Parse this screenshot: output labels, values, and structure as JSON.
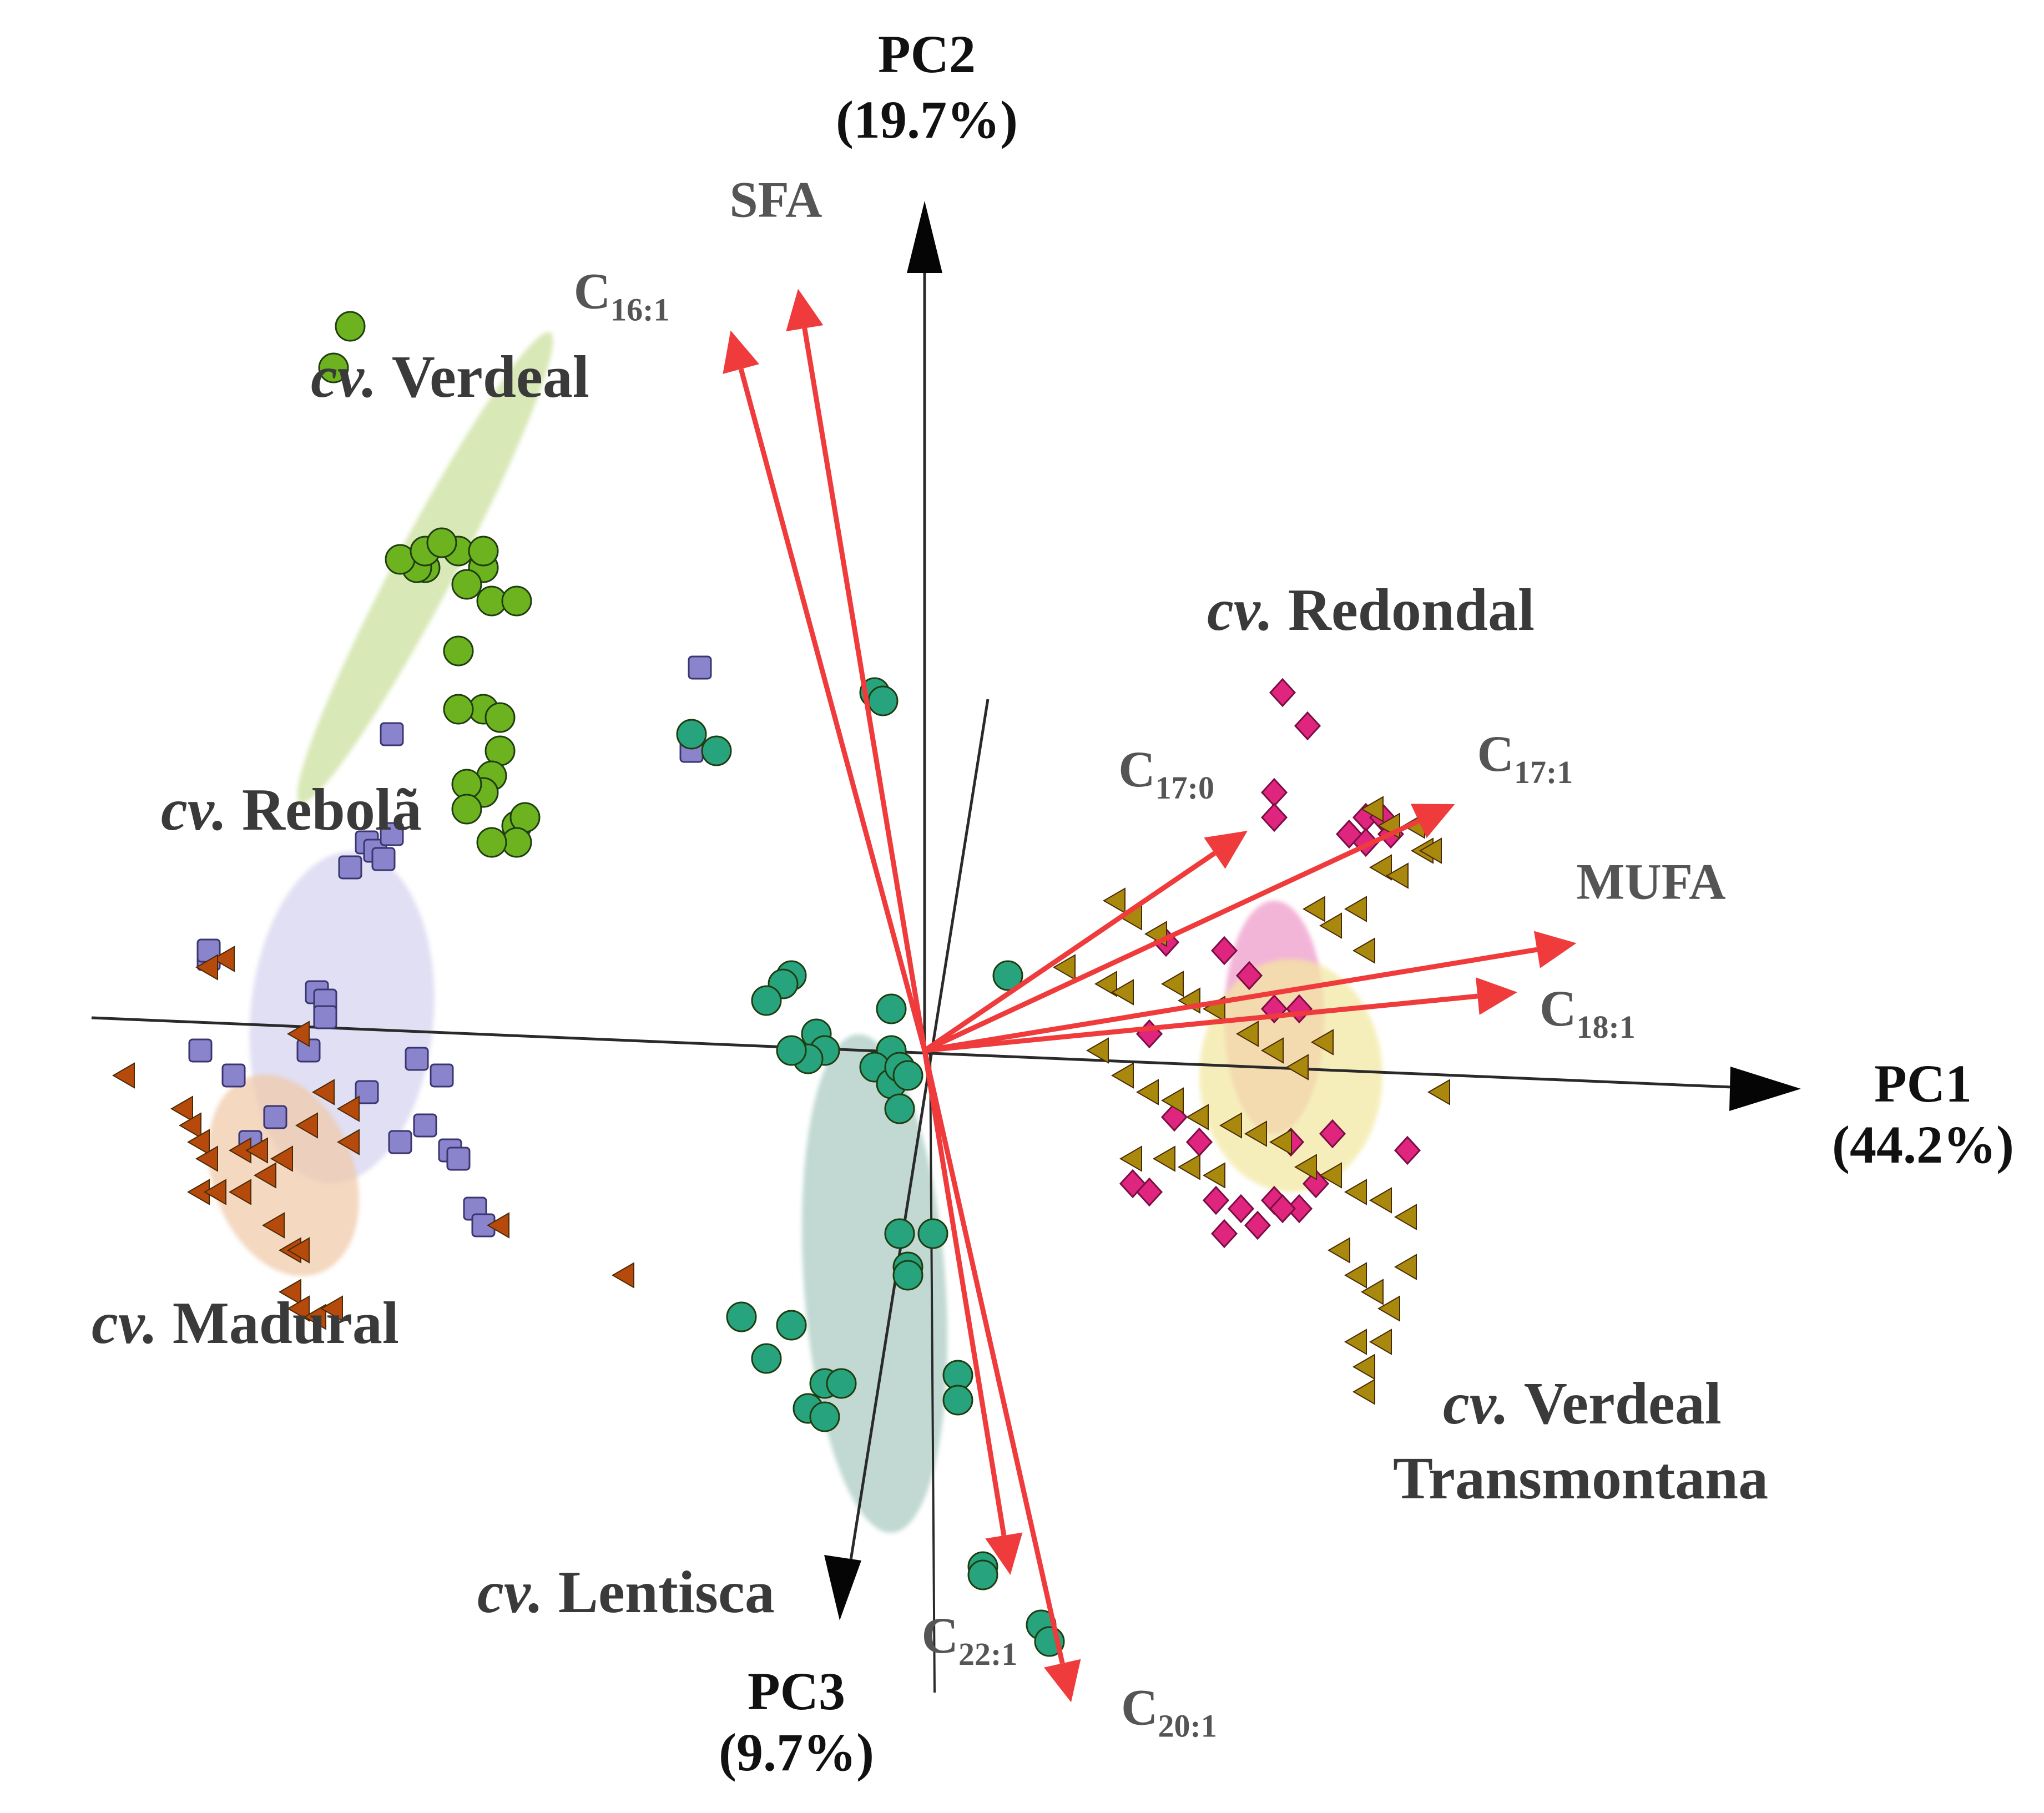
{
  "chart_data": {
    "type": "scatter",
    "subtype": "PCA biplot (3D)",
    "title": "",
    "axes": [
      {
        "id": "pc1",
        "name": "PC1",
        "variance": "(44.2%)",
        "lim": [
          -1.0,
          1.0
        ]
      },
      {
        "id": "pc2",
        "name": "PC2",
        "variance": "(19.7%)",
        "lim": [
          -1.0,
          1.0
        ]
      },
      {
        "id": "pc3",
        "name": "PC3",
        "variance": "(9.7%)",
        "lim": [
          -1.0,
          1.0
        ]
      }
    ],
    "loadings": [
      {
        "id": "sfa",
        "base": "SFA",
        "sub": "",
        "pc1": -0.152,
        "pc2": 0.915
      },
      {
        "id": "c161",
        "base": "C",
        "sub": "16:1",
        "pc1": -0.233,
        "pc2": 0.865
      },
      {
        "id": "c170",
        "base": "C",
        "sub": "17:0",
        "pc1": 0.388,
        "pc2": 0.264
      },
      {
        "id": "c171",
        "base": "C",
        "sub": "17:1",
        "pc1": 0.637,
        "pc2": 0.296
      },
      {
        "id": "mufa",
        "base": "MUFA",
        "sub": "",
        "pc1": 0.783,
        "pc2": 0.129
      },
      {
        "id": "c181",
        "base": "C",
        "sub": "18:1",
        "pc1": 0.712,
        "pc2": 0.07
      },
      {
        "id": "c221",
        "base": "C",
        "sub": "22:1",
        "pc1": 0.103,
        "pc2": -0.63
      },
      {
        "id": "c201",
        "base": "C",
        "sub": "20:1",
        "pc1": 0.176,
        "pc2": -0.783
      }
    ],
    "groups": [
      {
        "id": "verdeal",
        "cv": "cv.",
        "name": "Verdeal",
        "name2": "",
        "marker": "sphere",
        "color": "#6cb31f",
        "ellipse": {
          "cx": -0.6,
          "cy": 0.58,
          "rx": 0.32,
          "ry": 0.036,
          "angle": -62,
          "color": "#c9df9a"
        },
        "points": [
          [
            -0.69,
            0.87
          ],
          [
            -0.71,
            0.82
          ],
          [
            -0.56,
            0.6
          ],
          [
            -0.53,
            0.58
          ],
          [
            -0.53,
            0.6
          ],
          [
            -0.55,
            0.56
          ],
          [
            -0.52,
            0.54
          ],
          [
            -0.49,
            0.54
          ],
          [
            -0.56,
            0.48
          ],
          [
            -0.53,
            0.41
          ],
          [
            -0.56,
            0.41
          ],
          [
            -0.51,
            0.4
          ],
          [
            -0.6,
            0.58
          ],
          [
            -0.51,
            0.36
          ],
          [
            -0.52,
            0.33
          ],
          [
            -0.53,
            0.31
          ],
          [
            -0.55,
            0.32
          ],
          [
            -0.49,
            0.27
          ],
          [
            -0.48,
            0.28
          ],
          [
            -0.49,
            0.25
          ],
          [
            -0.52,
            0.25
          ],
          [
            -0.61,
            0.58
          ],
          [
            -0.63,
            0.59
          ],
          [
            -0.6,
            0.6
          ],
          [
            -0.58,
            0.61
          ],
          [
            -0.55,
            0.29
          ]
        ]
      },
      {
        "id": "rebola",
        "cv": "cv.",
        "name": "Rebolã",
        "name2": "",
        "marker": "cube",
        "color": "#8a84cc",
        "ellipse": {
          "cx": -0.7,
          "cy": 0.04,
          "rx": 0.11,
          "ry": 0.2,
          "angle": 5,
          "color": "#d6d3ee"
        },
        "points": [
          [
            -0.27,
            0.46
          ],
          [
            -0.64,
            0.38
          ],
          [
            -0.28,
            0.36
          ],
          [
            -0.67,
            0.25
          ],
          [
            -0.66,
            0.24
          ],
          [
            -0.65,
            0.23
          ],
          [
            -0.64,
            0.26
          ],
          [
            -0.69,
            0.22
          ],
          [
            -0.86,
            0.11
          ],
          [
            -0.86,
            0.12
          ],
          [
            -0.73,
            0.07
          ],
          [
            -0.72,
            0.06
          ],
          [
            -0.72,
            0.04
          ],
          [
            -0.87,
            0.0
          ],
          [
            -0.74,
            0.0
          ],
          [
            -0.61,
            -0.01
          ],
          [
            -0.83,
            -0.03
          ],
          [
            -0.58,
            -0.03
          ],
          [
            -0.67,
            -0.05
          ],
          [
            -0.78,
            -0.08
          ],
          [
            -0.6,
            -0.09
          ],
          [
            -0.63,
            -0.11
          ],
          [
            -0.57,
            -0.12
          ],
          [
            -0.56,
            -0.13
          ],
          [
            -0.81,
            -0.11
          ],
          [
            -0.54,
            -0.19
          ],
          [
            -0.53,
            -0.21
          ]
        ]
      },
      {
        "id": "madural",
        "cv": "cv.",
        "name": "Madural",
        "name2": "",
        "marker": "cone",
        "color": "#b54a0c",
        "ellipse": {
          "cx": -0.77,
          "cy": -0.15,
          "rx": 0.085,
          "ry": 0.125,
          "angle": -20,
          "color": "#f0c9a8"
        },
        "points": [
          [
            -0.84,
            0.11
          ],
          [
            -0.86,
            0.1
          ],
          [
            -0.96,
            -0.03
          ],
          [
            -0.89,
            -0.07
          ],
          [
            -0.88,
            -0.09
          ],
          [
            -0.87,
            -0.11
          ],
          [
            -0.86,
            -0.13
          ],
          [
            -0.82,
            -0.12
          ],
          [
            -0.8,
            -0.12
          ],
          [
            -0.79,
            -0.15
          ],
          [
            -0.87,
            -0.17
          ],
          [
            -0.85,
            -0.17
          ],
          [
            -0.82,
            -0.17
          ],
          [
            -0.78,
            -0.21
          ],
          [
            -0.76,
            -0.24
          ],
          [
            -0.75,
            -0.24
          ],
          [
            -0.76,
            -0.29
          ],
          [
            -0.75,
            -0.31
          ],
          [
            -0.73,
            -0.32
          ],
          [
            -0.71,
            -0.31
          ],
          [
            -0.69,
            -0.07
          ],
          [
            -0.72,
            -0.05
          ],
          [
            -0.69,
            -0.11
          ],
          [
            -0.51,
            -0.21
          ],
          [
            -0.77,
            -0.13
          ],
          [
            -0.74,
            -0.09
          ],
          [
            -0.75,
            0.02
          ],
          [
            -0.36,
            -0.27
          ]
        ]
      },
      {
        "id": "lentisca",
        "cv": "cv.",
        "name": "Lentisca",
        "name2": "",
        "marker": "sphere",
        "color": "#27a37e",
        "ellipse": {
          "cx": -0.06,
          "cy": -0.28,
          "rx": 0.085,
          "ry": 0.3,
          "angle": -4,
          "color": "#a9cbc0"
        },
        "points": [
          [
            -0.06,
            0.43
          ],
          [
            -0.05,
            0.42
          ],
          [
            -0.28,
            0.38
          ],
          [
            -0.25,
            0.36
          ],
          [
            0.1,
            0.09
          ],
          [
            -0.16,
            0.09
          ],
          [
            -0.17,
            0.08
          ],
          [
            -0.19,
            0.06
          ],
          [
            -0.04,
            0.05
          ],
          [
            -0.13,
            0.02
          ],
          [
            -0.12,
            0.0
          ],
          [
            -0.14,
            -0.01
          ],
          [
            -0.04,
            0.0
          ],
          [
            -0.06,
            -0.02
          ],
          [
            -0.04,
            -0.04
          ],
          [
            -0.03,
            -0.02
          ],
          [
            -0.02,
            -0.03
          ],
          [
            -0.03,
            -0.07
          ],
          [
            -0.16,
            0.0
          ],
          [
            -0.03,
            -0.22
          ],
          [
            0.01,
            -0.22
          ],
          [
            -0.02,
            -0.26
          ],
          [
            -0.02,
            -0.27
          ],
          [
            -0.22,
            -0.32
          ],
          [
            -0.16,
            -0.33
          ],
          [
            -0.19,
            -0.37
          ],
          [
            0.04,
            -0.39
          ],
          [
            0.04,
            -0.42
          ],
          [
            -0.12,
            -0.4
          ],
          [
            -0.1,
            -0.4
          ],
          [
            -0.14,
            -0.43
          ],
          [
            -0.12,
            -0.44
          ],
          [
            0.07,
            -0.62
          ],
          [
            0.07,
            -0.63
          ],
          [
            0.14,
            -0.69
          ],
          [
            0.15,
            -0.71
          ]
        ]
      },
      {
        "id": "redondal",
        "cv": "cv.",
        "name": "Redondal",
        "name2": "",
        "marker": "diamond",
        "color": "#e0257f",
        "ellipse": {
          "cx": 0.42,
          "cy": 0.04,
          "rx": 0.06,
          "ry": 0.14,
          "angle": 0,
          "color": "#ef98c8"
        },
        "points": [
          [
            0.43,
            0.43
          ],
          [
            0.46,
            0.39
          ],
          [
            0.42,
            0.31
          ],
          [
            0.42,
            0.28
          ],
          [
            0.53,
            0.28
          ],
          [
            0.55,
            0.28
          ],
          [
            0.53,
            0.25
          ],
          [
            0.51,
            0.26
          ],
          [
            0.56,
            0.26
          ],
          [
            0.29,
            0.13
          ],
          [
            0.36,
            0.12
          ],
          [
            0.39,
            0.09
          ],
          [
            0.42,
            0.05
          ],
          [
            0.45,
            0.05
          ],
          [
            0.27,
            0.02
          ],
          [
            0.3,
            -0.08
          ],
          [
            0.33,
            -0.11
          ],
          [
            0.44,
            -0.11
          ],
          [
            0.49,
            -0.1
          ],
          [
            0.58,
            -0.12
          ],
          [
            0.25,
            -0.16
          ],
          [
            0.27,
            -0.17
          ],
          [
            0.35,
            -0.18
          ],
          [
            0.38,
            -0.19
          ],
          [
            0.42,
            -0.18
          ],
          [
            0.45,
            -0.19
          ],
          [
            0.47,
            -0.16
          ],
          [
            0.36,
            -0.22
          ],
          [
            0.4,
            -0.21
          ],
          [
            0.43,
            -0.19
          ]
        ]
      },
      {
        "id": "verdeal_trans",
        "cv": "cv.",
        "name": "Verdeal",
        "name2": "Transmontana",
        "marker": "cone",
        "color": "#a9890d",
        "ellipse": {
          "cx": 0.44,
          "cy": -0.03,
          "rx": 0.11,
          "ry": 0.14,
          "angle": 0,
          "color": "#f3e7a0"
        },
        "points": [
          [
            0.54,
            0.29
          ],
          [
            0.56,
            0.27
          ],
          [
            0.59,
            0.27
          ],
          [
            0.6,
            0.24
          ],
          [
            0.61,
            0.24
          ],
          [
            0.55,
            0.22
          ],
          [
            0.57,
            0.21
          ],
          [
            0.47,
            0.17
          ],
          [
            0.52,
            0.17
          ],
          [
            0.23,
            0.18
          ],
          [
            0.25,
            0.16
          ],
          [
            0.28,
            0.14
          ],
          [
            0.49,
            0.15
          ],
          [
            0.53,
            0.12
          ],
          [
            0.17,
            0.1
          ],
          [
            0.22,
            0.08
          ],
          [
            0.24,
            0.07
          ],
          [
            0.3,
            0.08
          ],
          [
            0.32,
            0.06
          ],
          [
            0.35,
            0.05
          ],
          [
            0.39,
            0.02
          ],
          [
            0.42,
            0.0
          ],
          [
            0.45,
            -0.02
          ],
          [
            0.48,
            0.01
          ],
          [
            0.21,
            0.0
          ],
          [
            0.24,
            -0.03
          ],
          [
            0.27,
            -0.05
          ],
          [
            0.3,
            -0.06
          ],
          [
            0.33,
            -0.08
          ],
          [
            0.37,
            -0.09
          ],
          [
            0.4,
            -0.1
          ],
          [
            0.43,
            -0.11
          ],
          [
            0.46,
            -0.14
          ],
          [
            0.49,
            -0.15
          ],
          [
            0.52,
            -0.17
          ],
          [
            0.55,
            -0.18
          ],
          [
            0.58,
            -0.2
          ],
          [
            0.25,
            -0.13
          ],
          [
            0.29,
            -0.13
          ],
          [
            0.32,
            -0.14
          ],
          [
            0.35,
            -0.15
          ],
          [
            0.5,
            -0.24
          ],
          [
            0.52,
            -0.27
          ],
          [
            0.54,
            -0.29
          ],
          [
            0.56,
            -0.31
          ],
          [
            0.58,
            -0.26
          ],
          [
            0.52,
            -0.35
          ],
          [
            0.53,
            -0.38
          ],
          [
            0.55,
            -0.35
          ],
          [
            0.53,
            -0.41
          ],
          [
            0.62,
            -0.05
          ]
        ]
      }
    ]
  }
}
